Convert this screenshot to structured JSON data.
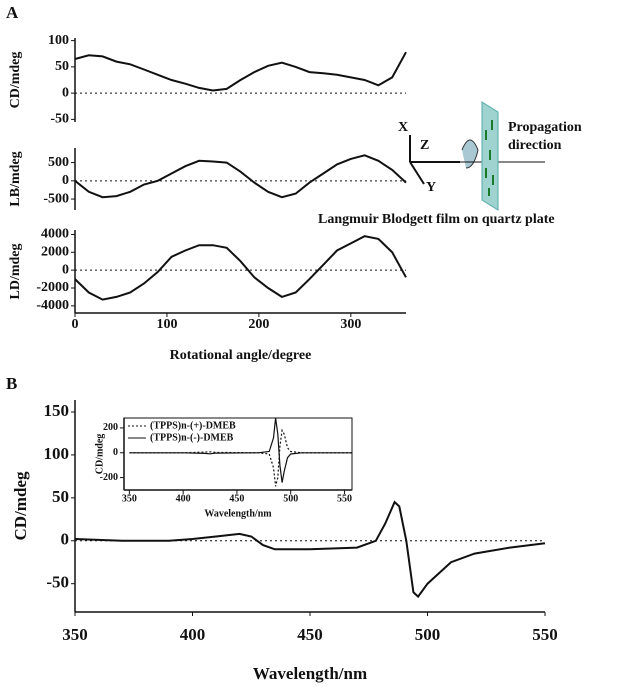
{
  "figure": {
    "panels": [
      "A",
      "B"
    ],
    "diagram": {
      "x": "X",
      "z": "Z",
      "y": "Y",
      "propagation": [
        "Propagation",
        "direction"
      ],
      "caption": "Langmuir Blodgett film on quartz plate"
    }
  },
  "chart_data": [
    {
      "type": "line",
      "y_label": "CD/mdeg",
      "xlim": [
        0,
        360
      ],
      "ylim": [
        -55,
        105
      ],
      "yticks": [
        100,
        50,
        0,
        -50
      ],
      "zero_line": true,
      "x": [
        0,
        15,
        30,
        45,
        60,
        75,
        90,
        105,
        120,
        135,
        150,
        165,
        180,
        195,
        210,
        225,
        240,
        255,
        270,
        285,
        300,
        315,
        330,
        345,
        360
      ],
      "series": [
        {
          "color": "#111",
          "values": [
            65,
            72,
            70,
            60,
            55,
            45,
            35,
            25,
            18,
            10,
            5,
            8,
            25,
            40,
            52,
            58,
            50,
            40,
            38,
            35,
            30,
            25,
            15,
            30,
            78
          ]
        }
      ]
    },
    {
      "type": "line",
      "y_label": "LB/mdeg",
      "xlim": [
        0,
        360
      ],
      "ylim": [
        -800,
        900
      ],
      "yticks": [
        500,
        0,
        -500
      ],
      "zero_line": true,
      "x": [
        0,
        15,
        30,
        45,
        60,
        75,
        90,
        105,
        120,
        135,
        150,
        165,
        180,
        195,
        210,
        225,
        240,
        255,
        270,
        285,
        300,
        315,
        330,
        345,
        360
      ],
      "series": [
        {
          "color": "#111",
          "values": [
            0,
            -300,
            -450,
            -420,
            -300,
            -100,
            0,
            200,
            400,
            550,
            530,
            500,
            250,
            -50,
            -300,
            -450,
            -350,
            -50,
            200,
            450,
            600,
            700,
            550,
            300,
            -50
          ]
        }
      ]
    },
    {
      "type": "line",
      "x_label": "Rotational angle/degree",
      "y_label": "LD/mdeg",
      "xlim": [
        0,
        360
      ],
      "ylim": [
        -4800,
        4500
      ],
      "xticks": [
        0,
        100,
        200,
        300
      ],
      "yticks": [
        4000,
        2000,
        0,
        -2000,
        -4000
      ],
      "zero_line": true,
      "x": [
        0,
        15,
        30,
        45,
        60,
        75,
        90,
        105,
        120,
        135,
        150,
        165,
        180,
        195,
        210,
        225,
        240,
        255,
        270,
        285,
        300,
        315,
        330,
        345,
        360
      ],
      "series": [
        {
          "color": "#111",
          "values": [
            -1000,
            -2500,
            -3300,
            -3000,
            -2500,
            -1500,
            -200,
            1500,
            2200,
            2800,
            2800,
            2500,
            1000,
            -800,
            -2000,
            -3000,
            -2500,
            -1000,
            600,
            2200,
            3000,
            3800,
            3500,
            2000,
            -800
          ]
        }
      ]
    },
    {
      "type": "line",
      "x_label": "Wavelength/nm",
      "y_label": "CD/mdeg",
      "xlim": [
        350,
        550
      ],
      "ylim": [
        -83,
        164
      ],
      "xticks": [
        350,
        400,
        450,
        500,
        550
      ],
      "yticks": [
        150,
        100,
        50,
        0,
        -50
      ],
      "zero_line": true,
      "x": [
        350,
        370,
        390,
        400,
        410,
        420,
        425,
        430,
        435,
        450,
        470,
        478,
        482,
        486,
        488,
        491,
        494,
        496,
        500,
        510,
        520,
        535,
        550
      ],
      "series": [
        {
          "color": "#111",
          "values": [
            2,
            0,
            0,
            2,
            5,
            8,
            5,
            -5,
            -10,
            -10,
            -8,
            0,
            20,
            45,
            40,
            0,
            -60,
            -65,
            -50,
            -25,
            -15,
            -8,
            -3
          ]
        }
      ]
    },
    {
      "type": "line",
      "x_label": "Wavelength/nm",
      "y_label": "CD/mdeg",
      "xlim": [
        345,
        557
      ],
      "ylim": [
        -300,
        280
      ],
      "xticks": [
        350,
        400,
        450,
        500,
        550
      ],
      "yticks": [
        200,
        0,
        -200
      ],
      "frame": true,
      "x": [
        350,
        400,
        420,
        425,
        430,
        470,
        480,
        484,
        486,
        488,
        490,
        492,
        494,
        497,
        500,
        510,
        557
      ],
      "series": [
        {
          "name": "(TPPS)n-(+)-DMEB",
          "color": "#111",
          "line_style": "dotted",
          "values": [
            0,
            0,
            5,
            8,
            3,
            0,
            -10,
            -120,
            -270,
            -200,
            50,
            180,
            150,
            40,
            10,
            0,
            0
          ]
        },
        {
          "name": "(TPPS)n-(-)-DMEB",
          "color": "#111",
          "line_style": "solid",
          "values": [
            0,
            0,
            -5,
            -8,
            -3,
            0,
            10,
            120,
            280,
            150,
            -100,
            -240,
            -150,
            -40,
            -10,
            0,
            0
          ]
        }
      ]
    }
  ]
}
